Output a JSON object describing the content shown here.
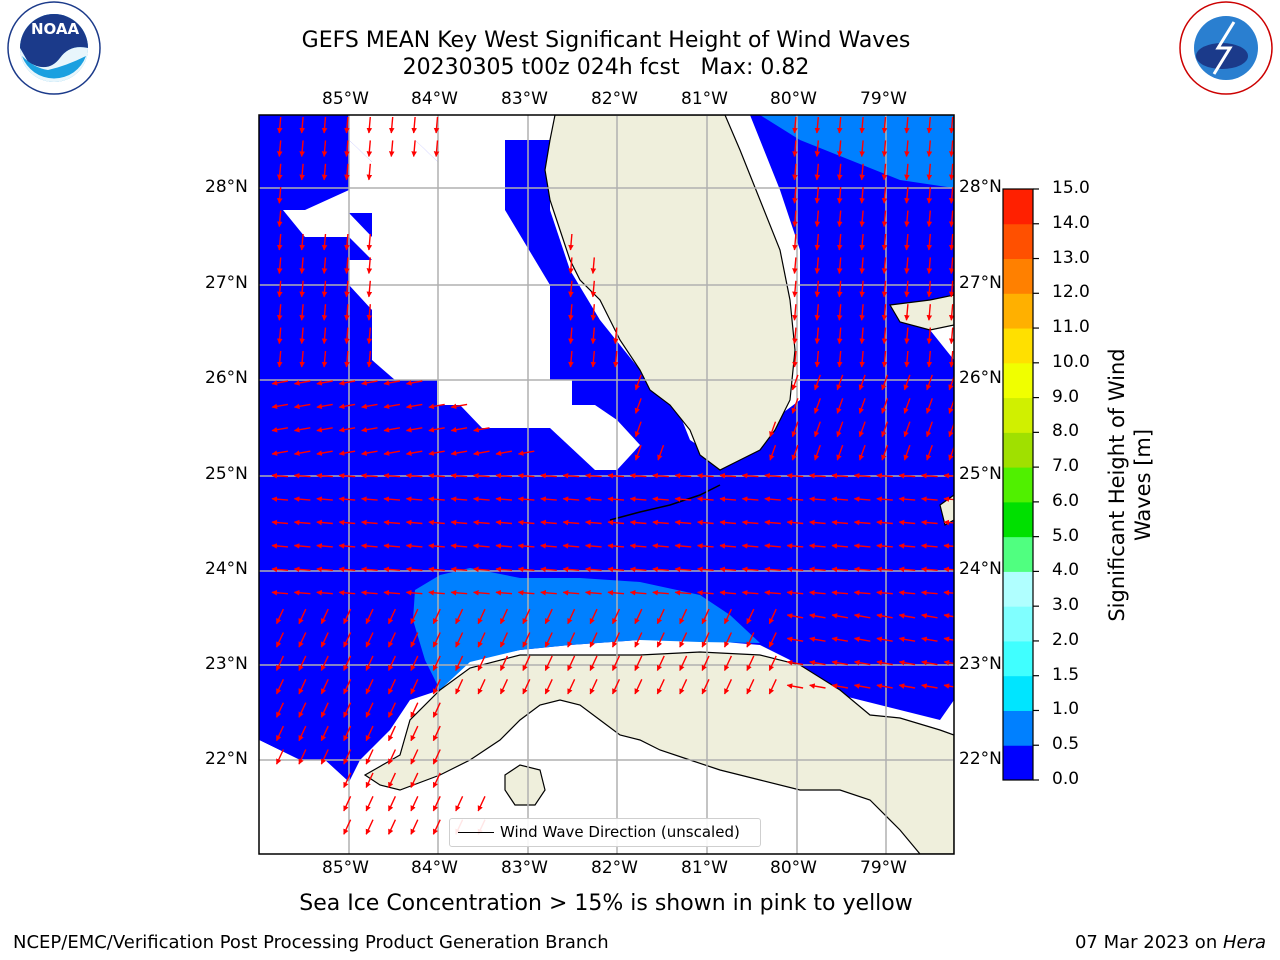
{
  "header": {
    "title_line1": "GEFS MEAN Key West Significant Height of Wind Waves",
    "title_line2": "20230305 t00z 024h fcst   Max: 0.82"
  },
  "logos": {
    "noaa": {
      "text": "NOAA",
      "ring_text": "NATIONAL OCEANIC AND ATMOSPHERIC ADMINISTRATION · U.S. DEPARTMENT OF COMMERCE"
    },
    "nws": {
      "ring_text": "NATIONAL WEATHER SERVICE"
    }
  },
  "map": {
    "lon_labels": [
      "85°W",
      "84°W",
      "83°W",
      "82°W",
      "81°W",
      "80°W",
      "79°W"
    ],
    "lat_labels": [
      "28°N",
      "27°N",
      "26°N",
      "25°N",
      "24°N",
      "23°N",
      "22°N"
    ],
    "legend_label": "Wind Wave Direction (unscaled)",
    "colors": {
      "land": "#efefdc",
      "ocean_low": "#0000ff",
      "ocean_mid": "#0080ff",
      "arrow": "#ff0000",
      "grid": "#b0b0b0"
    }
  },
  "colorbar": {
    "title_line1": "Significant Height of Wind",
    "title_line2": "Waves [m]",
    "ticks": [
      "0.0",
      "0.5",
      "1.0",
      "1.5",
      "2.0",
      "3.0",
      "4.0",
      "5.0",
      "6.0",
      "7.0",
      "8.0",
      "9.0",
      "10.0",
      "11.0",
      "12.0",
      "13.0",
      "14.0",
      "15.0"
    ],
    "colors": [
      "#0000ff",
      "#0080ff",
      "#00e5ff",
      "#40ffff",
      "#80ffff",
      "#b0ffff",
      "#50ff80",
      "#00e000",
      "#50f000",
      "#a0e000",
      "#d0f000",
      "#f0ff00",
      "#ffe000",
      "#ffb000",
      "#ff8000",
      "#ff5000",
      "#ff2000"
    ]
  },
  "notes": {
    "sea_ice": "Sea Ice Concentration > 15% is shown in pink to yellow"
  },
  "footer": {
    "left": "NCEP/EMC/Verification Post Processing Product Generation Branch",
    "right_prefix": "07 Mar 2023 on ",
    "right_host": "Hera"
  }
}
